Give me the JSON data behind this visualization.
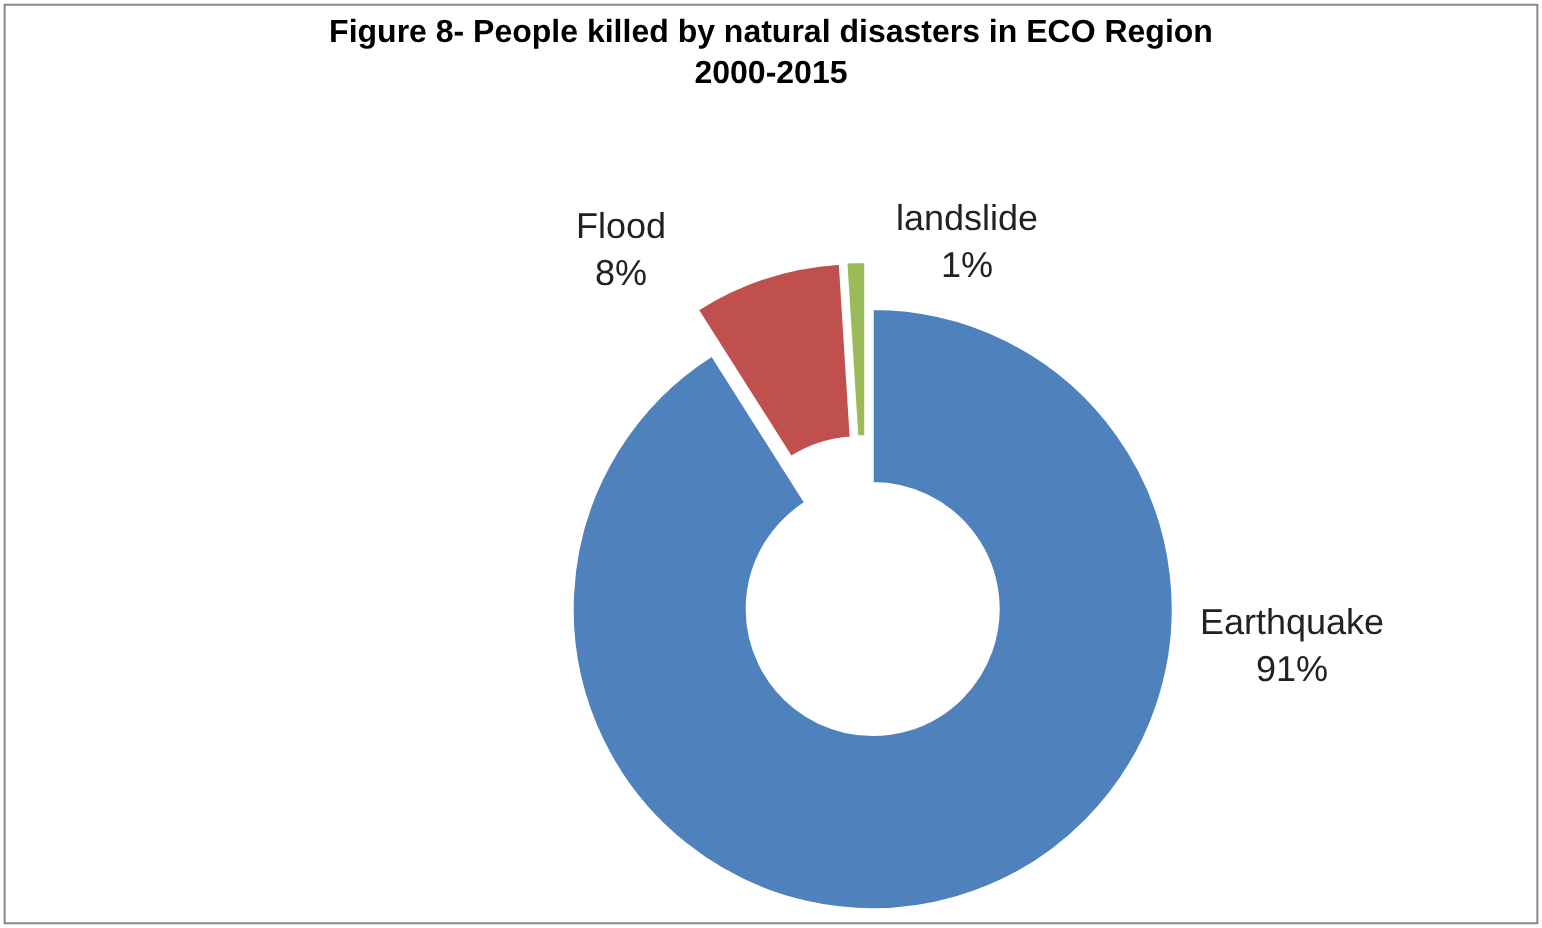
{
  "chart_data": {
    "type": "donut",
    "title": "Figure 8- People killed by natural disasters in ECO Region\n2000-2015",
    "categories": [
      "Earthquake",
      "Flood",
      "landslide"
    ],
    "values": [
      91,
      8,
      1
    ],
    "value_labels": [
      "91%",
      "8%",
      "1%"
    ],
    "colors": [
      "#4f81bd",
      "#c0504d",
      "#9bbb59"
    ],
    "legend": false
  }
}
